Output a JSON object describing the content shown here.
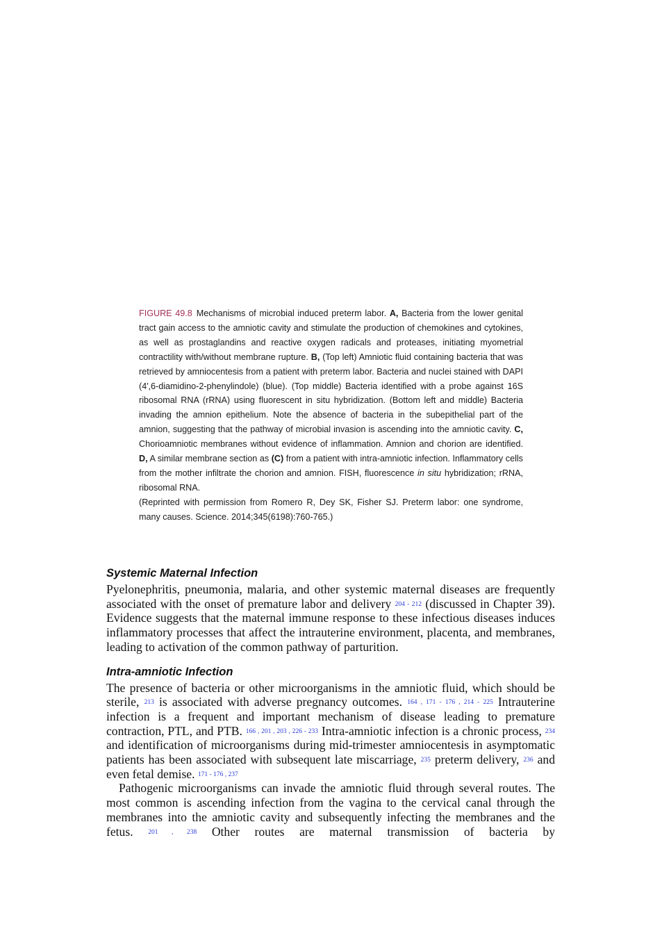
{
  "caption": {
    "segments": [
      {
        "text": "FIGURE 49.8",
        "style": "label"
      },
      {
        "text": "Mechanisms of microbial induced preterm labor. "
      },
      {
        "text": "A,",
        "style": "bold"
      },
      {
        "text": " Bacteria from the lower genital tract gain access to the amniotic cavity and stimulate the production of chemokines and cytokines, as well as prostaglandins and reactive oxygen radicals and proteases, initiating myometrial contractility with/without membrane rupture. "
      },
      {
        "text": "B,",
        "style": "bold"
      },
      {
        "text": " (Top left) Amniotic fluid containing bacteria that was retrieved by amniocentesis from a patient with preterm labor. Bacteria and nuclei stained with DAPI (4′,6-diamidino-2-phenylindole) (blue). (Top middle) Bacteria identified with a probe against 16S ribosomal RNA (rRNA) using fluorescent in situ hybridization. (Bottom left and middle) Bacteria invading the amnion epithelium. Note the absence of bacteria in the subepithelial part of the amnion, suggesting that the pathway of microbial invasion is ascending into the amniotic cavity. "
      },
      {
        "text": "C,",
        "style": "bold"
      },
      {
        "text": " Chorioamniotic membranes without evidence of inflammation. Amnion and chorion are identified. "
      },
      {
        "text": "D,",
        "style": "bold"
      },
      {
        "text": " A similar membrane section as "
      },
      {
        "text": "(C)",
        "style": "bold"
      },
      {
        "text": " from a patient with intra-amniotic infection. Inflammatory cells from the mother infiltrate the chorion and amnion. FISH, fluorescence "
      },
      {
        "text": "in situ",
        "style": "italic"
      },
      {
        "text": " hybridization; rRNA, ribosomal RNA."
      }
    ],
    "credit": "(Reprinted with permission from Romero R, Dey SK, Fisher SJ. Preterm labor: one syndrome, many causes. Science. 2014;345(6198):760-765.)"
  },
  "sections": [
    {
      "heading": "Systemic Maternal Infection",
      "paragraphs": [
        [
          {
            "text": "Pyelonephritis, pneumonia, malaria, and other systemic maternal diseases are frequently associated with the onset of premature labor and delivery "
          },
          {
            "text": "204 - 212",
            "style": "cite"
          },
          {
            "text": " (discussed in Chapter 39). Evidence suggests that the maternal immune response to these infectious diseases induces inflammatory processes that affect the intrauterine environment, placenta, and membranes, leading to activation of the common pathway of parturition."
          }
        ]
      ]
    },
    {
      "heading": "Intra-amniotic Infection",
      "paragraphs": [
        [
          {
            "text": "The presence of bacteria or other microorganisms in the amniotic fluid, which should be sterile, "
          },
          {
            "text": "213",
            "style": "cite"
          },
          {
            "text": " is associated with adverse pregnancy outcomes. "
          },
          {
            "text": "164 , 171 - 176 , 214 - 225",
            "style": "cite"
          },
          {
            "text": " Intrauterine infection is a frequent and important mechanism of disease leading to premature contraction, PTL, and PTB. "
          },
          {
            "text": "166 , 201 , 203 , 226 - 233",
            "style": "cite"
          },
          {
            "text": " Intra-amniotic infection is a chronic process, "
          },
          {
            "text": "234",
            "style": "cite"
          },
          {
            "text": " and identification of microorganisms during mid-trimester amniocentesis in asymptomatic patients has been associated with subsequent late miscarriage, "
          },
          {
            "text": "235",
            "style": "cite"
          },
          {
            "text": " preterm delivery, "
          },
          {
            "text": "236",
            "style": "cite"
          },
          {
            "text": " and even fetal demise. "
          },
          {
            "text": "171 - 176 , 237",
            "style": "cite"
          }
        ],
        [
          {
            "text": "Pathogenic microorganisms can invade the amniotic fluid through several routes. The most common is ascending infection from the vagina to the cervical canal through the membranes into the amniotic cavity and subsequently infecting the membranes and the fetus. "
          },
          {
            "text": "201 , 238",
            "style": "cite"
          },
          {
            "text": " Other routes are maternal transmission of bacteria by"
          }
        ]
      ]
    }
  ]
}
